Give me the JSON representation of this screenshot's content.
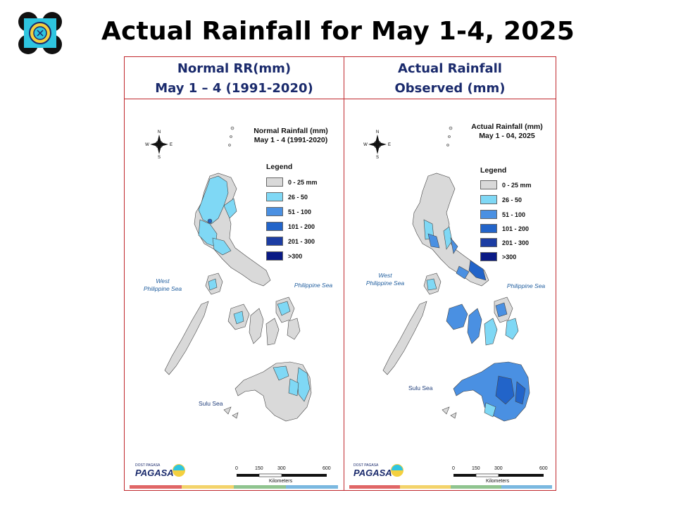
{
  "slide": {
    "title": "Actual Rainfall for May 1-4, 2025"
  },
  "headers": {
    "left_line1": "Normal RR(mm)",
    "left_line2": "May 1 – 4 (1991-2020)",
    "right_line1": "Actual Rainfall",
    "right_line2": "Observed  (mm)"
  },
  "left_map": {
    "title_line1": "Normal Rainfall (mm)",
    "title_line2": "May 1 - 4  (1991-2020)",
    "west_sea": [
      "West",
      "Philippine Sea"
    ],
    "philippine_sea": "Philippine Sea",
    "sulu_sea": "Sulu Sea"
  },
  "right_map": {
    "title_line1": "Actual Rainfall (mm)",
    "title_line2": "May 1 - 04, 2025",
    "west_sea": [
      "West",
      "Philippine Sea"
    ],
    "philippine_sea": "Philippine Sea",
    "sulu_sea": "Sulu Sea"
  },
  "legend": {
    "title": "Legend",
    "items": [
      {
        "label": "0 - 25 mm",
        "color": "#d9d9d9"
      },
      {
        "label": "26 - 50",
        "color": "#7fd8f5"
      },
      {
        "label": "51 - 100",
        "color": "#4a90e2"
      },
      {
        "label": "101 - 200",
        "color": "#2264c9"
      },
      {
        "label": "201 - 300",
        "color": "#1c3da3"
      },
      {
        "label": ">300",
        "color": "#0a1a85"
      }
    ]
  },
  "compass": {
    "n": "N",
    "s": "S",
    "e": "E",
    "w": "W"
  },
  "scale": {
    "ticks": [
      "0",
      "150",
      "300",
      "600"
    ],
    "unit": "Kilometers"
  },
  "branding": {
    "tagline": "DOST PAGASA"
  },
  "colors": {
    "header_text": "#1a2a6c",
    "frame": "#c0272d",
    "stripe": [
      "#e06666",
      "#f3d36b",
      "#8fc48f",
      "#7ab8e0"
    ]
  }
}
